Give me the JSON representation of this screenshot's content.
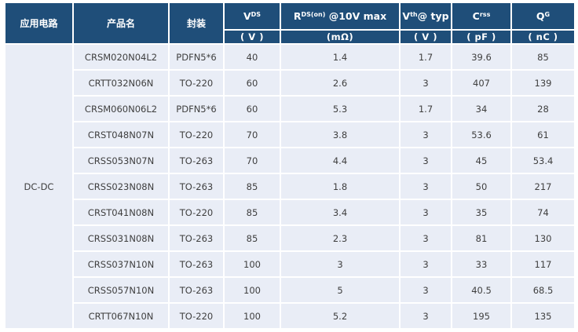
{
  "colors": {
    "header_bg": "#1F4E79",
    "header_text": "#FFFFFF",
    "row_bg": "#E9EDF6",
    "body_text": "#3F3F3F",
    "grid_gap": "#FFFFFF"
  },
  "table": {
    "application_label": "DC-DC",
    "columns": [
      {
        "label": "应用电路"
      },
      {
        "label": "产品名"
      },
      {
        "label": "封装"
      },
      {
        "base": "V",
        "sup": "DS",
        "rest": "",
        "unit": "( V )"
      },
      {
        "base": "R",
        "sup": "DS(on)",
        "rest": " @10V max",
        "unit": "(mΩ)"
      },
      {
        "base": "V",
        "sup": "th",
        "rest": "@ typ",
        "unit": "( V )"
      },
      {
        "base": "C",
        "sup": "rss",
        "rest": "",
        "unit": "( pF )"
      },
      {
        "base": "Q",
        "sup": "G",
        "rest": "",
        "unit": "( nC )"
      }
    ],
    "rows": [
      {
        "product": "CRSM020N04L2",
        "package": "PDFN5*6",
        "vds": "40",
        "rds": "1.4",
        "vth": "1.7",
        "crss": "39.6",
        "qg": "85"
      },
      {
        "product": "CRTT032N06N",
        "package": "TO-220",
        "vds": "60",
        "rds": "2.6",
        "vth": "3",
        "crss": "407",
        "qg": "139"
      },
      {
        "product": "CRSM060N06L2",
        "package": "PDFN5*6",
        "vds": "60",
        "rds": "5.3",
        "vth": "1.7",
        "crss": "34",
        "qg": "28"
      },
      {
        "product": "CRST048N07N",
        "package": "TO-220",
        "vds": "70",
        "rds": "3.8",
        "vth": "3",
        "crss": "53.6",
        "qg": "61"
      },
      {
        "product": "CRSS053N07N",
        "package": "TO-263",
        "vds": "70",
        "rds": "4.4",
        "vth": "3",
        "crss": "45",
        "qg": "53.4"
      },
      {
        "product": "CRSS023N08N",
        "package": "TO-263",
        "vds": "85",
        "rds": "1.8",
        "vth": "3",
        "crss": "50",
        "qg": "217"
      },
      {
        "product": "CRST041N08N",
        "package": "TO-220",
        "vds": "85",
        "rds": "3.4",
        "vth": "3",
        "crss": "35",
        "qg": "74"
      },
      {
        "product": "CRSS031N08N",
        "package": "TO-263",
        "vds": "85",
        "rds": "2.3",
        "vth": "3",
        "crss": "81",
        "qg": "130"
      },
      {
        "product": "CRSS037N10N",
        "package": "TO-263",
        "vds": "100",
        "rds": "3",
        "vth": "3",
        "crss": "33",
        "qg": "117"
      },
      {
        "product": "CRSS057N10N",
        "package": "TO-263",
        "vds": "100",
        "rds": "5",
        "vth": "3",
        "crss": "40.5",
        "qg": "68.5"
      },
      {
        "product": "CRTT067N10N",
        "package": "TO-220",
        "vds": "100",
        "rds": "5.2",
        "vth": "3",
        "crss": "195",
        "qg": "135"
      }
    ]
  }
}
